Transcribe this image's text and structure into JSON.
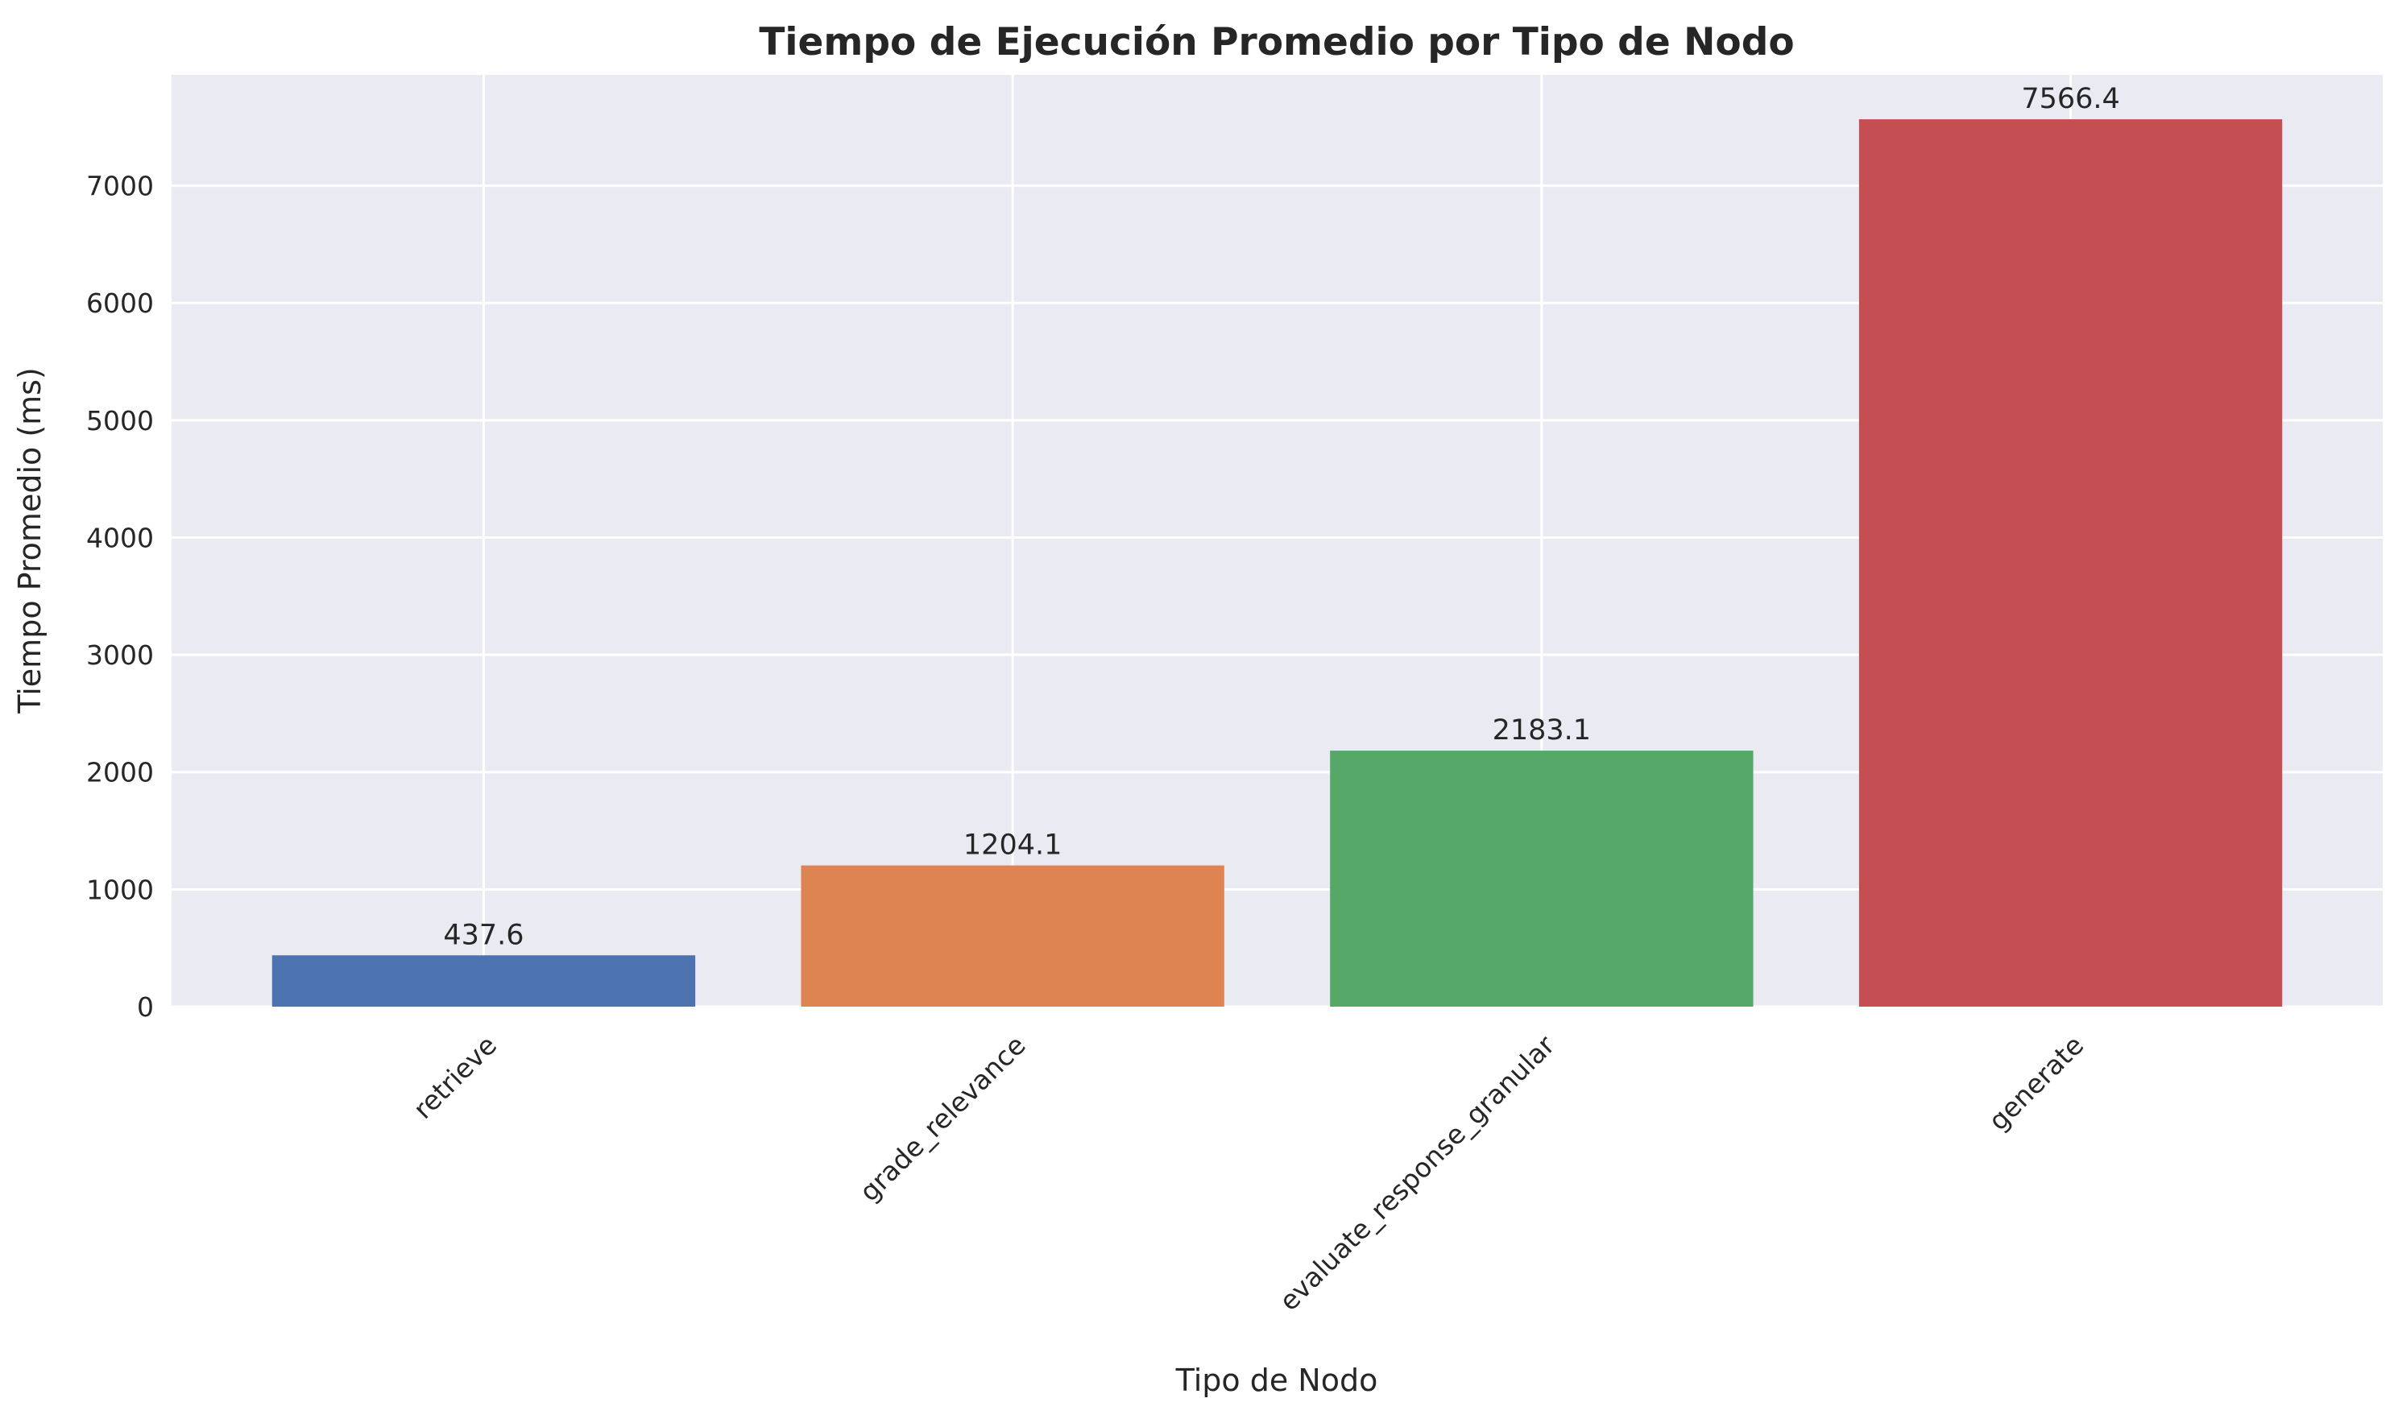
{
  "chart_data": {
    "type": "bar",
    "title": "Tiempo de Ejecución Promedio por Tipo de Nodo",
    "xlabel": "Tipo de Nodo",
    "ylabel": "Tiempo Promedio (ms)",
    "categories": [
      "retrieve",
      "grade_relevance",
      "evaluate_response_granular",
      "generate"
    ],
    "values": [
      437.6,
      1204.1,
      2183.1,
      7566.4
    ],
    "value_labels": [
      "437.6",
      "1204.1",
      "2183.1",
      "7566.4"
    ],
    "colors": [
      "#4c72b0",
      "#dd8452",
      "#55a868",
      "#c44e52"
    ],
    "ylim": [
      0,
      7944.7
    ],
    "yticks": [
      0,
      1000,
      2000,
      3000,
      4000,
      5000,
      6000,
      7000
    ],
    "grid": true,
    "legend": "none",
    "background": "#eaeaf2"
  }
}
